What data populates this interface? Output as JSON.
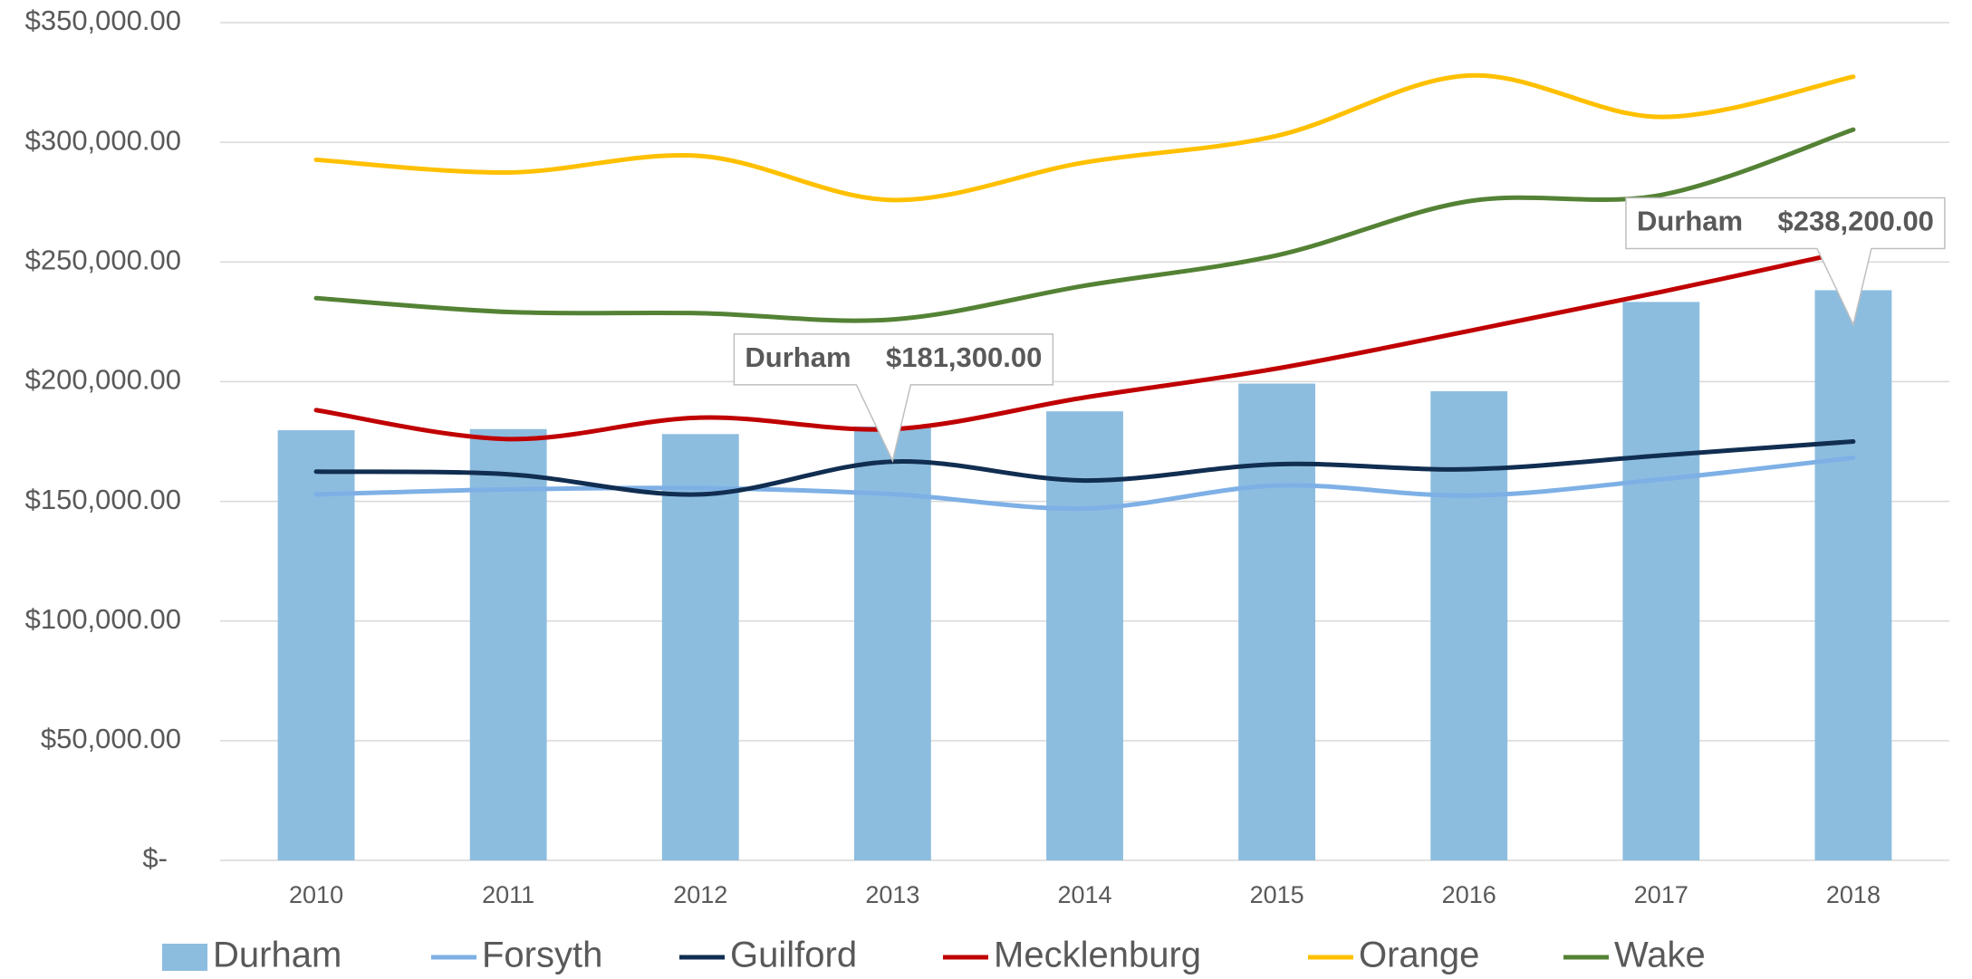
{
  "chart_data": {
    "type": "bar",
    "categories": [
      "2010",
      "2011",
      "2012",
      "2013",
      "2014",
      "2015",
      "2016",
      "2017",
      "2018"
    ],
    "series": [
      {
        "name": "Durham",
        "color": "#8cbddf",
        "type": "bar",
        "values": [
          179700,
          180200,
          178100,
          181300,
          187600,
          199200,
          196000,
          233300,
          238200
        ],
        "value_labels": [
          null,
          null,
          null,
          "$181,300.00",
          null,
          null,
          null,
          null,
          "$238,200.00"
        ]
      },
      {
        "name": "Forsyth",
        "color": "#7eb0e6",
        "type": "line",
        "values": [
          152900,
          155000,
          155500,
          153000,
          147000,
          156600,
          152400,
          159200,
          168200
        ]
      },
      {
        "name": "Guilford",
        "color": "#112e51",
        "type": "line",
        "values": [
          162400,
          161300,
          152900,
          166600,
          158700,
          165500,
          163400,
          169200,
          175000
        ]
      },
      {
        "name": "Mecklenburg",
        "color": "#c00000",
        "type": "line",
        "values": [
          188100,
          176000,
          185000,
          180200,
          193400,
          205500,
          221200,
          237500,
          254900
        ]
      },
      {
        "name": "Orange",
        "color": "#ffc000",
        "type": "line",
        "values": [
          292700,
          287400,
          294300,
          275900,
          291600,
          302700,
          327900,
          310600,
          327400
        ]
      },
      {
        "name": "Wake",
        "color": "#548235",
        "type": "line",
        "values": [
          234900,
          229100,
          228600,
          226000,
          240100,
          252800,
          275400,
          278000,
          305300
        ]
      }
    ],
    "ylim": [
      0,
      350000
    ],
    "yticks": [
      {
        "value": 0,
        "label": "$-"
      },
      {
        "value": 50000,
        "label": "$50,000.00"
      },
      {
        "value": 100000,
        "label": "$100,000.00"
      },
      {
        "value": 150000,
        "label": "$150,000.00"
      },
      {
        "value": 200000,
        "label": "$200,000.00"
      },
      {
        "value": 250000,
        "label": "$250,000.00"
      },
      {
        "value": 300000,
        "label": "$300,000.00"
      },
      {
        "value": 350000,
        "label": "$350,000.00"
      }
    ],
    "grid": true,
    "smooth": true,
    "legend": "bottom"
  }
}
